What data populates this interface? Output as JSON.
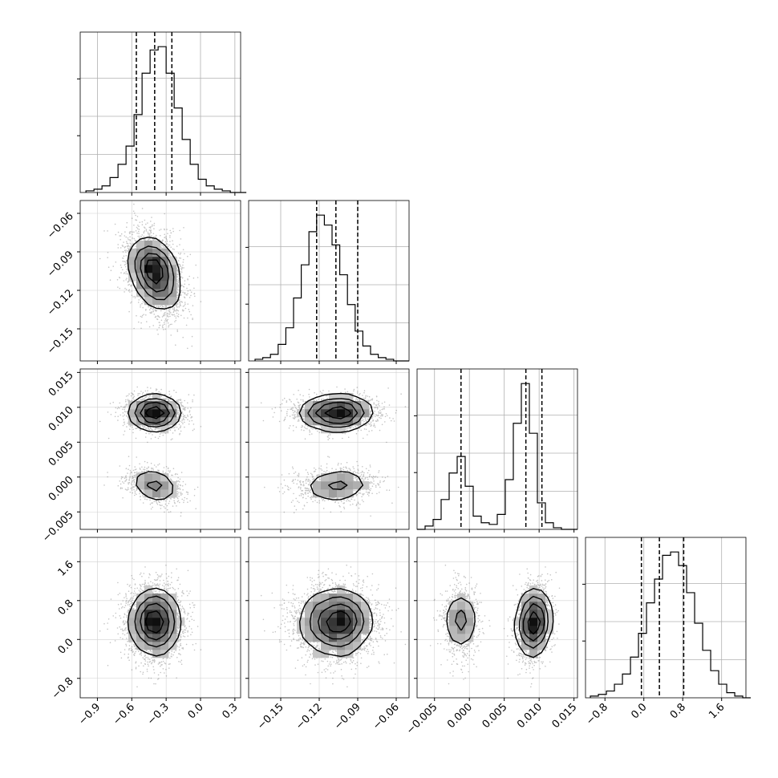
{
  "chart_data": {
    "type": "corner",
    "title": "",
    "parameters": [
      {
        "range": [
          -1.05,
          0.35
        ],
        "ticks": [
          "−0.9",
          "−0.6",
          "−0.3",
          "0.0",
          "0.3"
        ],
        "tick_values": [
          -0.9,
          -0.6,
          -0.3,
          0.0,
          0.3
        ],
        "quantiles": [
          -0.56,
          -0.4,
          -0.25
        ],
        "mean": -0.4,
        "sd": 0.12
      },
      {
        "range": [
          -0.175,
          -0.05
        ],
        "ticks": [
          "−0.15",
          "−0.12",
          "−0.09",
          "−0.06"
        ],
        "tick_values": [
          -0.15,
          -0.12,
          -0.09,
          -0.06
        ],
        "quantiles": [
          -0.122,
          -0.107,
          -0.09
        ],
        "mean": -0.106,
        "sd": 0.015
      },
      {
        "range": [
          -0.0075,
          0.0155
        ],
        "ticks": [
          "−0.005",
          "0.000",
          "0.005",
          "0.010",
          "0.015"
        ],
        "tick_values": [
          -0.005,
          0.0,
          0.005,
          0.01,
          0.015
        ],
        "quantiles": [
          -0.0012,
          0.0081,
          0.0104
        ],
        "modes": [
          {
            "mean": -0.0012,
            "sd": 0.0012,
            "weight": 0.32
          },
          {
            "mean": 0.0092,
            "sd": 0.0012,
            "weight": 0.68
          }
        ]
      },
      {
        "range": [
          -1.2,
          2.1
        ],
        "ticks": [
          "−0.8",
          "0.0",
          "0.8",
          "1.6"
        ],
        "tick_values": [
          -0.8,
          0.0,
          0.8,
          1.6
        ],
        "quantiles": [
          -0.05,
          0.32,
          0.82
        ],
        "mean": 0.35,
        "sd": 0.38
      }
    ],
    "histograms": [
      {
        "param": 0,
        "bin_start": -1.0,
        "bin_width": 0.07,
        "counts": [
          1,
          2,
          4,
          9,
          17,
          28,
          47,
          72,
          86,
          88,
          72,
          51,
          32,
          17,
          8,
          4,
          2,
          1,
          0,
          0
        ]
      },
      {
        "param": 1,
        "bin_start": -0.17,
        "bin_width": 0.006,
        "counts": [
          1,
          2,
          4,
          10,
          20,
          38,
          58,
          78,
          88,
          82,
          70,
          52,
          34,
          18,
          9,
          4,
          2,
          1,
          0,
          0
        ]
      },
      {
        "param": 2,
        "bin_start": -0.0075,
        "bin_width": 0.00115,
        "counts": [
          0,
          2,
          6,
          18,
          34,
          44,
          26,
          8,
          4,
          3,
          9,
          30,
          64,
          88,
          58,
          16,
          4,
          1,
          0,
          0
        ]
      },
      {
        "param": 3,
        "bin_start": -1.1,
        "bin_width": 0.165,
        "counts": [
          1,
          2,
          4,
          8,
          14,
          24,
          38,
          56,
          70,
          84,
          86,
          78,
          62,
          44,
          28,
          16,
          8,
          3,
          1,
          0
        ]
      }
    ],
    "grid": true,
    "density_colormap": "greys",
    "contour_levels": 4
  }
}
